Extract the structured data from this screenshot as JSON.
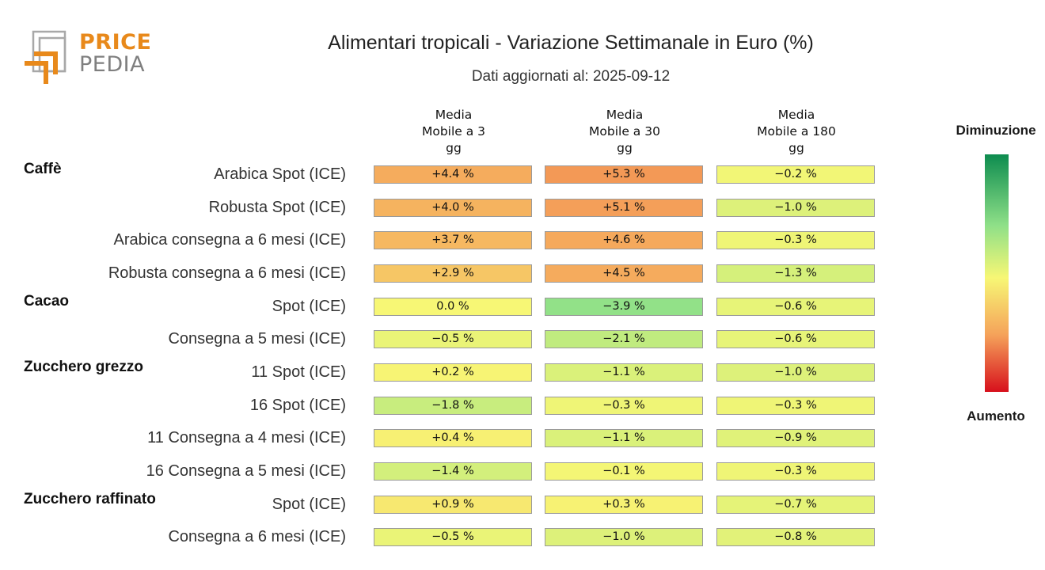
{
  "logo": {
    "word1": "PRICE",
    "word2": "PEDIA",
    "colors": {
      "accent": "#e8891b",
      "neutral": "#9a9a9a"
    }
  },
  "chart_data": {
    "type": "table",
    "title": "Alimentari tropicali - Variazione Settimanale in Euro (%)",
    "subtitle": "Dati aggiornati al: 2025-09-12",
    "columns": [
      "Media\nMobile a 3\ngg",
      "Media\nMobile a 30\ngg",
      "Media\nMobile a 180\ngg"
    ],
    "groups": [
      {
        "name": "Caffè",
        "rows": [
          {
            "label": "Arabica Spot (ICE)",
            "values": [
              4.4,
              5.3,
              -0.2
            ],
            "text": [
              "+4.4 %",
              "+5.3 %",
              "−0.2 %"
            ]
          },
          {
            "label": "Robusta Spot (ICE)",
            "values": [
              4.0,
              5.1,
              -1.0
            ],
            "text": [
              "+4.0 %",
              "+5.1 %",
              "−1.0 %"
            ]
          },
          {
            "label": "Arabica consegna a 6 mesi (ICE)",
            "values": [
              3.7,
              4.6,
              -0.3
            ],
            "text": [
              "+3.7 %",
              "+4.6 %",
              "−0.3 %"
            ]
          },
          {
            "label": "Robusta consegna a 6 mesi (ICE)",
            "values": [
              2.9,
              4.5,
              -1.3
            ],
            "text": [
              "+2.9 %",
              "+4.5 %",
              "−1.3 %"
            ]
          }
        ]
      },
      {
        "name": "Cacao",
        "rows": [
          {
            "label": "Spot (ICE)",
            "values": [
              0.0,
              -3.9,
              -0.6
            ],
            "text": [
              "0.0 %",
              "−3.9 %",
              "−0.6 %"
            ]
          },
          {
            "label": "Consegna a 5 mesi (ICE)",
            "values": [
              -0.5,
              -2.1,
              -0.6
            ],
            "text": [
              "−0.5 %",
              "−2.1 %",
              "−0.6 %"
            ]
          }
        ]
      },
      {
        "name": "Zucchero grezzo",
        "rows": [
          {
            "label": "11 Spot (ICE)",
            "values": [
              0.2,
              -1.1,
              -1.0
            ],
            "text": [
              "+0.2 %",
              "−1.1 %",
              "−1.0 %"
            ]
          },
          {
            "label": "16 Spot (ICE)",
            "values": [
              -1.8,
              -0.3,
              -0.3
            ],
            "text": [
              "−1.8 %",
              "−0.3 %",
              "−0.3 %"
            ]
          },
          {
            "label": "11 Consegna a 4 mesi (ICE)",
            "values": [
              0.4,
              -1.1,
              -0.9
            ],
            "text": [
              "+0.4 %",
              "−1.1 %",
              "−0.9 %"
            ]
          },
          {
            "label": "16 Consegna a 5 mesi (ICE)",
            "values": [
              -1.4,
              -0.1,
              -0.3
            ],
            "text": [
              "−1.4 %",
              "−0.1 %",
              "−0.3 %"
            ]
          }
        ]
      },
      {
        "name": "Zucchero raffinato",
        "rows": [
          {
            "label": "Spot (ICE)",
            "values": [
              0.9,
              0.3,
              -0.7
            ],
            "text": [
              "+0.9 %",
              "+0.3 %",
              "−0.7 %"
            ]
          },
          {
            "label": "Consegna a 6 mesi (ICE)",
            "values": [
              -0.5,
              -1.0,
              -0.8
            ],
            "text": [
              "−0.5 %",
              "−1.0 %",
              "−0.8 %"
            ]
          }
        ]
      }
    ],
    "legend": {
      "top_label": "Diminuzione",
      "bottom_label": "Aumento",
      "colors": [
        "#0d8c4f",
        "#8fe088",
        "#f7f775",
        "#f5a25a",
        "#d7101c"
      ],
      "range": [
        -10,
        10
      ]
    }
  }
}
